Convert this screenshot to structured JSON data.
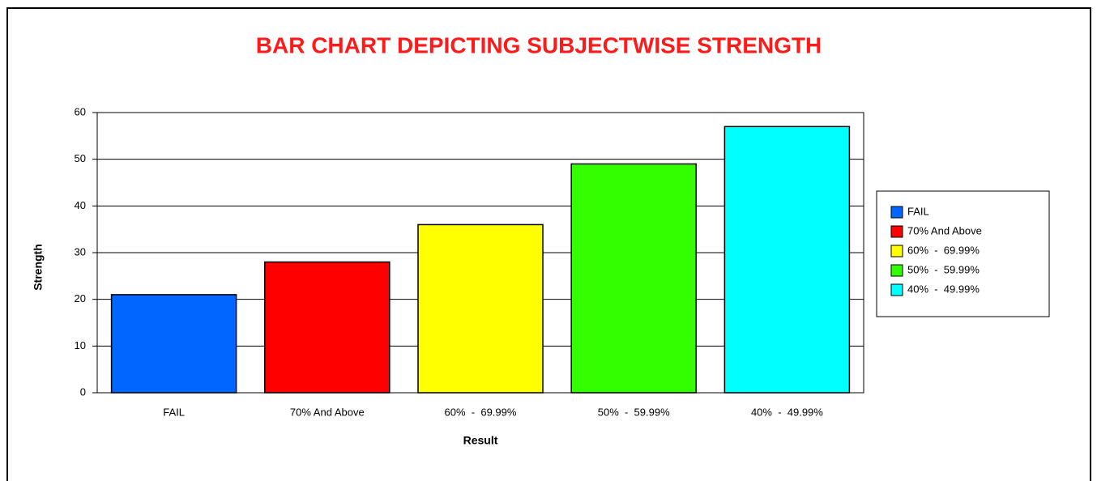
{
  "chart_data": {
    "type": "bar",
    "title": "BAR CHART DEPICTING SUBJECTWISE STRENGTH",
    "x_label": "Result",
    "y_label": "Strength",
    "categories": [
      "FAIL",
      "70% And Above",
      "60%  -  69.99%",
      "50%  -  59.99%",
      "40%  -  49.99%"
    ],
    "values": [
      21,
      28,
      36,
      49,
      57
    ],
    "colors": [
      "#0066ff",
      "#ff0000",
      "#ffff00",
      "#33ff00",
      "#00ffff"
    ],
    "ylim": [
      0,
      60
    ],
    "yticks": [
      0,
      10,
      20,
      30,
      40,
      50,
      60
    ],
    "grid": true,
    "legend": "right"
  }
}
